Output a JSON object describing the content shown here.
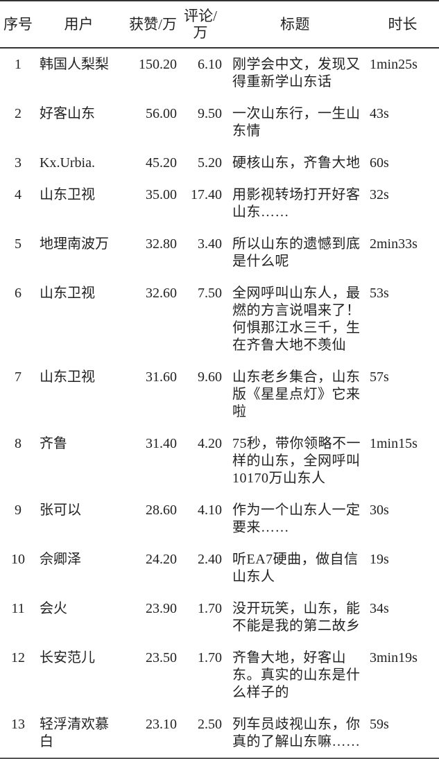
{
  "headers": {
    "index": "序号",
    "user": "用户",
    "likes": "获赞/万",
    "comments_line1": "评论/",
    "comments_line2": "万",
    "title": "标题",
    "duration": "时长"
  },
  "rows": [
    {
      "index": "1",
      "user": "韩国人梨梨",
      "likes": "150.20",
      "comments": "6.10",
      "title": "刚学会中文，发现又得重新学山东话",
      "duration": "1min25s"
    },
    {
      "index": "2",
      "user": "好客山东",
      "likes": "56.00",
      "comments": "9.50",
      "title": "一次山东行，一生山东情",
      "duration": "43s"
    },
    {
      "index": "3",
      "user": "Kx.Urbia.",
      "likes": "45.20",
      "comments": "5.20",
      "title": "硬核山东，齐鲁大地",
      "duration": "60s"
    },
    {
      "index": "4",
      "user": "山东卫视",
      "likes": "35.00",
      "comments": "17.40",
      "title": "用影视转场打开好客山东……",
      "duration": "32s"
    },
    {
      "index": "5",
      "user": "地理南波万",
      "likes": "32.80",
      "comments": "3.40",
      "title": "所以山东的遗憾到底是什么呢",
      "duration": "2min33s"
    },
    {
      "index": "6",
      "user": "山东卫视",
      "likes": "32.60",
      "comments": "7.50",
      "title": "全网呼叫山东人，最燃的方言说唱来了！何惧那江水三千，生在齐鲁大地不羡仙",
      "duration": "53s"
    },
    {
      "index": "7",
      "user": "山东卫视",
      "likes": "31.60",
      "comments": "9.60",
      "title": "山东老乡集合，山东版《星星点灯》它来啦",
      "duration": "57s"
    },
    {
      "index": "8",
      "user": "齐鲁",
      "likes": "31.40",
      "comments": "4.20",
      "title": "75秒，带你领略不一样的山东，全网呼叫10170万山东人",
      "duration": "1min15s"
    },
    {
      "index": "9",
      "user": "张可以",
      "likes": "28.60",
      "comments": "4.10",
      "title": "作为一个山东人一定要来……",
      "duration": "30s"
    },
    {
      "index": "10",
      "user": "佘卿泽",
      "likes": "24.20",
      "comments": "2.40",
      "title": "听EA7硬曲，做自信山东人",
      "duration": "19s"
    },
    {
      "index": "11",
      "user": "会火",
      "likes": "23.90",
      "comments": "1.70",
      "title": "没开玩笑，山东，能不能是我的第二故乡",
      "duration": "34s"
    },
    {
      "index": "12",
      "user": "长安范儿",
      "likes": "23.50",
      "comments": "1.70",
      "title": "齐鲁大地，好客山东。真实的山东是什么样子的",
      "duration": "3min19s"
    },
    {
      "index": "13",
      "user": "轻浮清欢慕白",
      "likes": "23.10",
      "comments": "2.50",
      "title": "列车员歧视山东，你真的了解山东嘛……",
      "duration": "59s"
    }
  ]
}
